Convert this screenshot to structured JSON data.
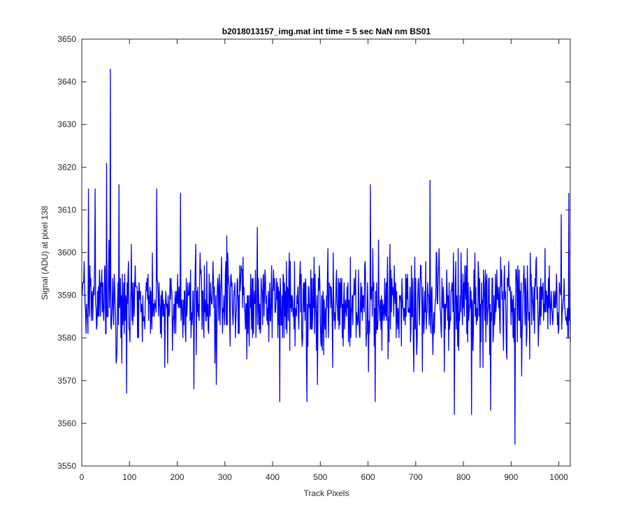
{
  "chart_data": {
    "type": "line",
    "title": "b2018013157_img.mat int time = 5 sec  NaN nm BS01",
    "xlabel": "Track Pixels",
    "ylabel": "Signal (ADU) at pixel 138",
    "xlim": [
      0,
      1024
    ],
    "ylim": [
      3550,
      3650
    ],
    "x_ticks": [
      0,
      100,
      200,
      300,
      400,
      500,
      600,
      700,
      800,
      900,
      1000
    ],
    "y_ticks": [
      3550,
      3560,
      3570,
      3580,
      3590,
      3600,
      3610,
      3620,
      3630,
      3640,
      3650
    ],
    "grid": false,
    "box": true,
    "series": [
      {
        "color": "#0000ff",
        "x_start": 1,
        "x_step": 1,
        "n_points": 1024,
        "baseline": 3588,
        "noise_sd": 6,
        "key_points": [
          {
            "x": 1,
            "y": 3590
          },
          {
            "x": 5,
            "y": 3598
          },
          {
            "x": 14,
            "y": 3615
          },
          {
            "x": 28,
            "y": 3615
          },
          {
            "x": 52,
            "y": 3621
          },
          {
            "x": 60,
            "y": 3643
          },
          {
            "x": 78,
            "y": 3616
          },
          {
            "x": 94,
            "y": 3567
          },
          {
            "x": 157,
            "y": 3615
          },
          {
            "x": 207,
            "y": 3614
          },
          {
            "x": 235,
            "y": 3568
          },
          {
            "x": 282,
            "y": 3569
          },
          {
            "x": 415,
            "y": 3565
          },
          {
            "x": 472,
            "y": 3565
          },
          {
            "x": 605,
            "y": 3616
          },
          {
            "x": 615,
            "y": 3565
          },
          {
            "x": 730,
            "y": 3617
          },
          {
            "x": 781,
            "y": 3562
          },
          {
            "x": 817,
            "y": 3562
          },
          {
            "x": 857,
            "y": 3563
          },
          {
            "x": 908,
            "y": 3555
          },
          {
            "x": 1005,
            "y": 3609
          },
          {
            "x": 1021,
            "y": 3614
          }
        ]
      }
    ]
  }
}
